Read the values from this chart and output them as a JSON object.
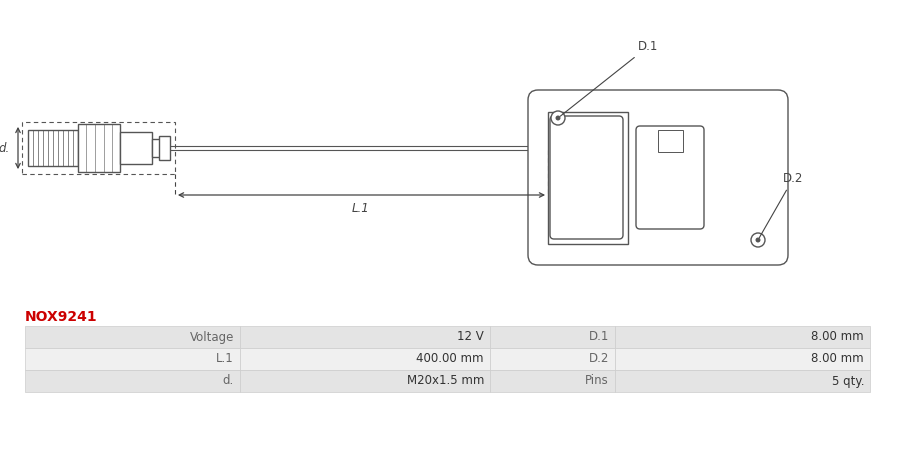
{
  "title": "NOX9241",
  "title_color": "#cc0000",
  "bg_color": "#ffffff",
  "table_data": [
    [
      "Voltage",
      "12 V",
      "D.1",
      "8.00 mm"
    ],
    [
      "L.1",
      "400.00 mm",
      "D.2",
      "8.00 mm"
    ],
    [
      "d.",
      "M20x1.5 mm",
      "Pins",
      "5 qty."
    ]
  ],
  "row_bg_colors": [
    "#e4e4e4",
    "#f0f0f0",
    "#e4e4e4"
  ],
  "line_color": "#555555",
  "label_color": "#444444",
  "font_size_table": 8.5,
  "font_size_title": 10,
  "col_starts": [
    25,
    240,
    490,
    615
  ],
  "col_ends": [
    240,
    490,
    615,
    870
  ]
}
